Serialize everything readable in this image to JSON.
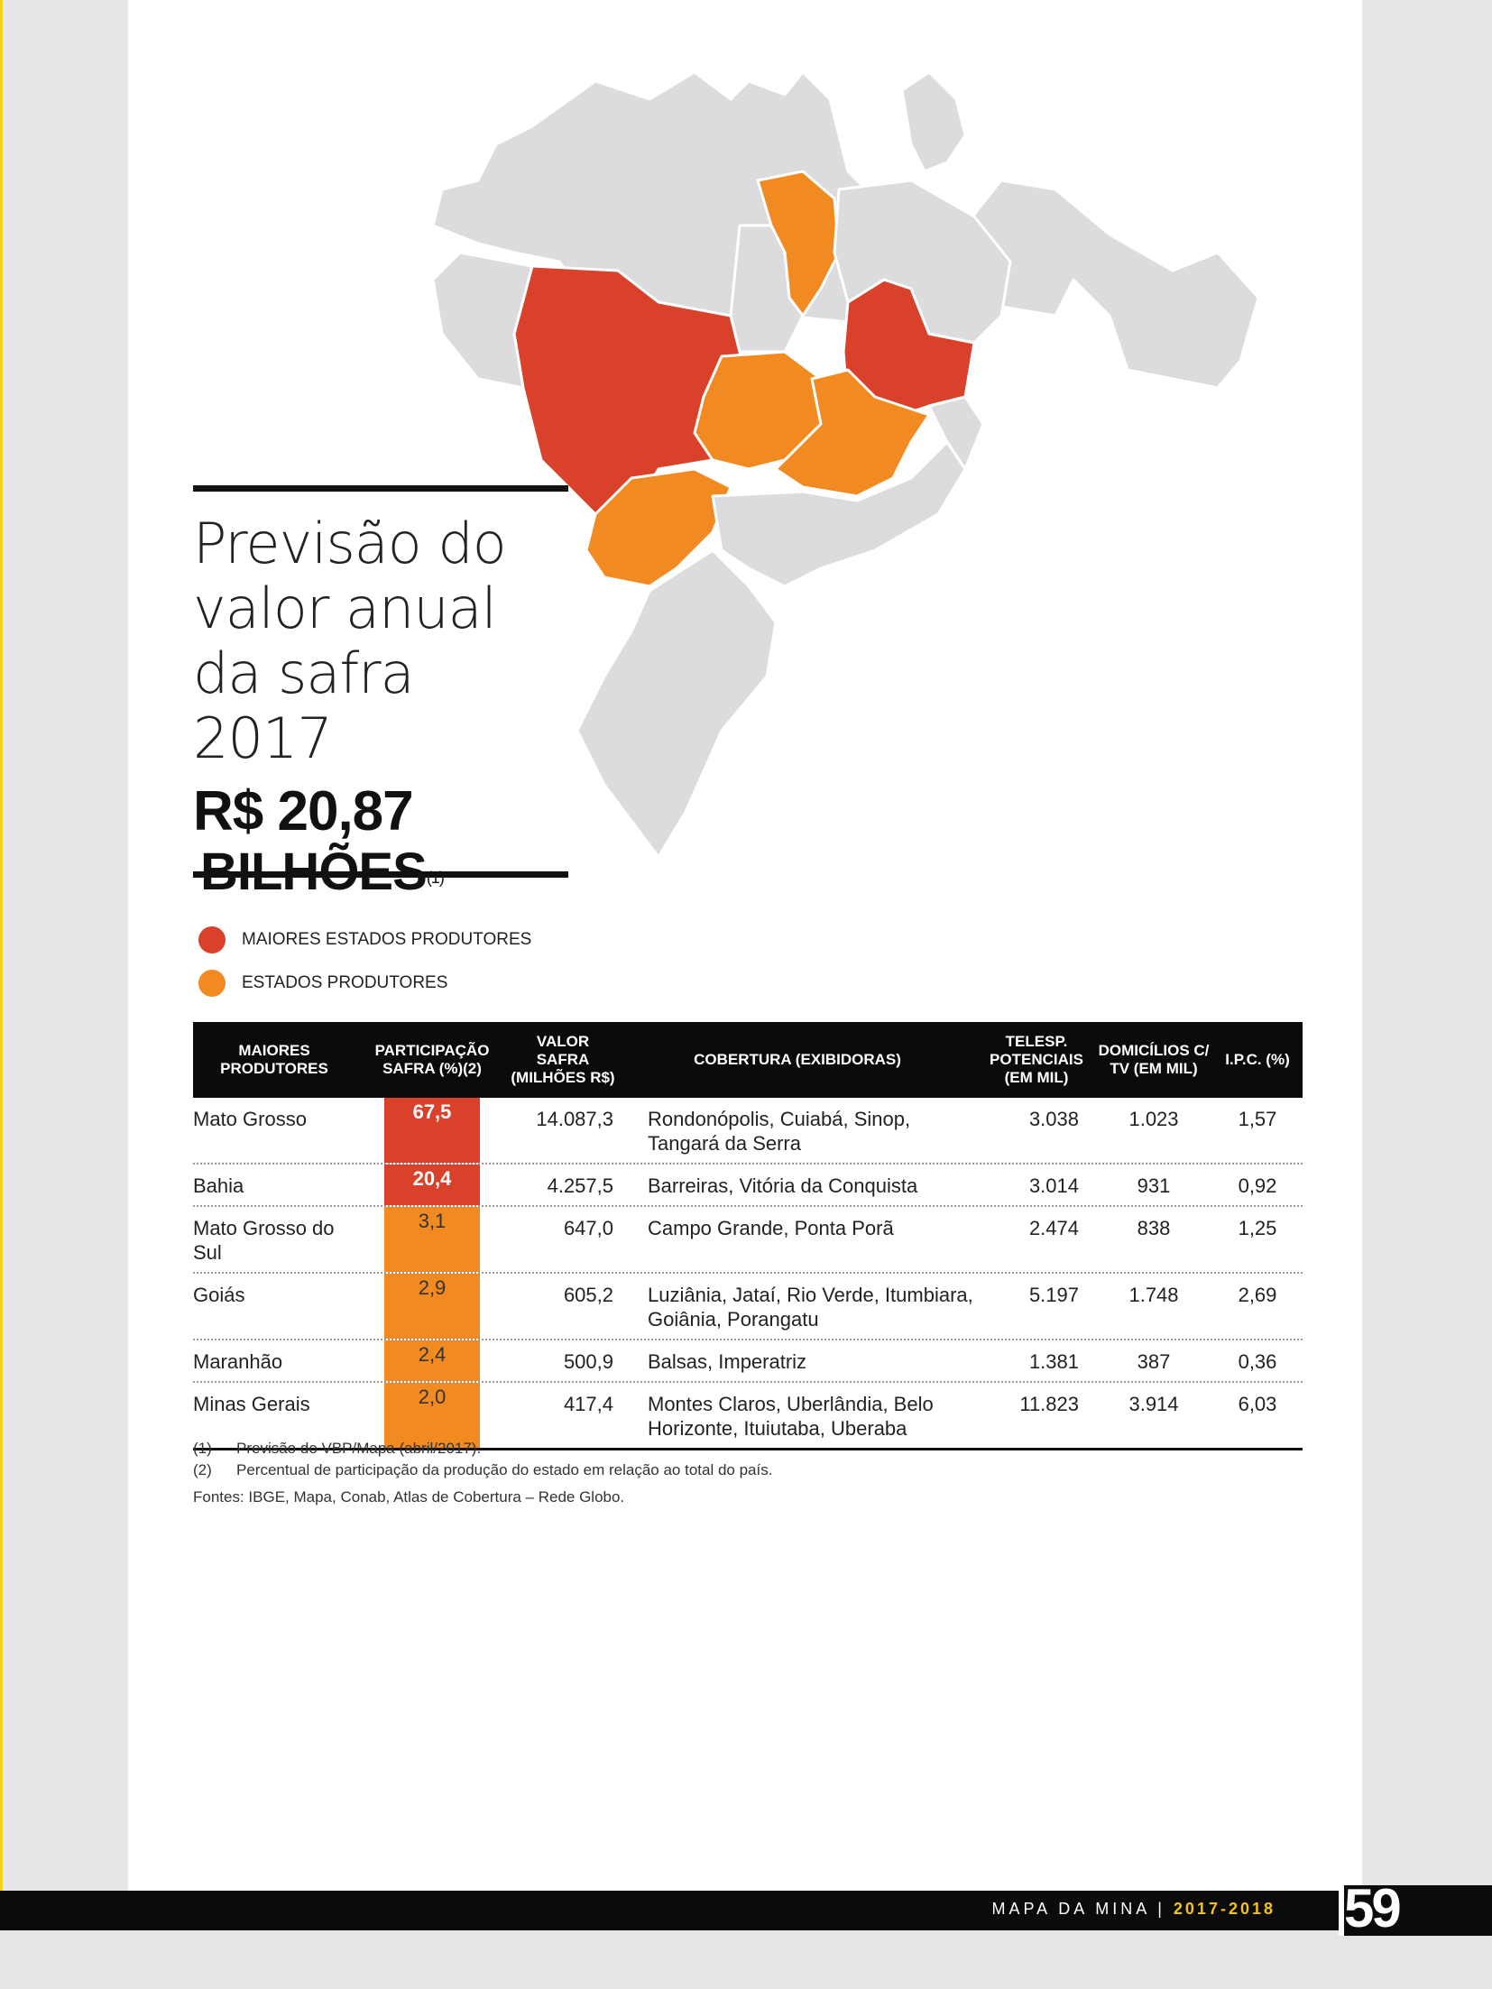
{
  "title": {
    "line1": "Previsão do",
    "line2": "valor anual",
    "line3": "da safra 2017",
    "amount": "R$ 20,87",
    "amount_unit": "BILHÕES",
    "amount_note": "(1)"
  },
  "legend": [
    {
      "label": "MAIORES ESTADOS PRODUTORES",
      "color": "#d9412a"
    },
    {
      "label": "ESTADOS PRODUTORES",
      "color": "#f28a22"
    }
  ],
  "colors": {
    "major": "#d9412a",
    "producer": "#f28a22",
    "land": "#dcdcde",
    "accent": "#f3c21c"
  },
  "table": {
    "headers": [
      "MAIORES PRODUTORES",
      "PARTICIPAÇÃO SAFRA (%)(2)",
      "VALOR SAFRA (MILHÕES R$)",
      "COBERTURA (EXIBIDORAS)",
      "TELESP. POTENCIAIS (EM MIL)",
      "DOMICÍLIOS C/ TV (EM MIL)",
      "I.P.C. (%)"
    ],
    "rows": [
      {
        "state": "Mato Grosso",
        "share": "67,5",
        "tier": "major",
        "value": "14.087,3",
        "coverage": "Rondonópolis, Cuiabá, Sinop, Tangará da Serra",
        "viewers": "3.038",
        "homes": "1.023",
        "ipc": "1,57"
      },
      {
        "state": "Bahia",
        "share": "20,4",
        "tier": "major",
        "value": "4.257,5",
        "coverage": "Barreiras, Vitória da Conquista",
        "viewers": "3.014",
        "homes": "931",
        "ipc": "0,92"
      },
      {
        "state": "Mato Grosso do Sul",
        "share": "3,1",
        "tier": "producer",
        "value": "647,0",
        "coverage": "Campo Grande, Ponta Porã",
        "viewers": "2.474",
        "homes": "838",
        "ipc": "1,25"
      },
      {
        "state": "Goiás",
        "share": "2,9",
        "tier": "producer",
        "value": "605,2",
        "coverage": "Luziânia, Jataí, Rio Verde, Itumbiara, Goiânia, Porangatu",
        "viewers": "5.197",
        "homes": "1.748",
        "ipc": "2,69"
      },
      {
        "state": "Maranhão",
        "share": "2,4",
        "tier": "producer",
        "value": "500,9",
        "coverage": "Balsas, Imperatriz",
        "viewers": "1.381",
        "homes": "387",
        "ipc": "0,36"
      },
      {
        "state": "Minas Gerais",
        "share": "2,0",
        "tier": "producer",
        "value": "417,4",
        "coverage": "Montes Claros, Uberlândia, Belo Horizonte, Ituiutaba, Uberaba",
        "viewers": "11.823",
        "homes": "3.914",
        "ipc": "6,03"
      }
    ]
  },
  "notes": {
    "n1_num": "(1)",
    "n1_text": "Previsão do VBP/Mapa (abril/2017).",
    "n2_num": "(2)",
    "n2_text": "Percentual de participação da produção do estado em relação ao total do país.",
    "sources": "Fontes: IBGE, Mapa, Conab, Atlas de Cobertura – Rede Globo."
  },
  "footer": {
    "publication": "MAPA DA MINA",
    "years": "2017-2018",
    "page": "59"
  }
}
